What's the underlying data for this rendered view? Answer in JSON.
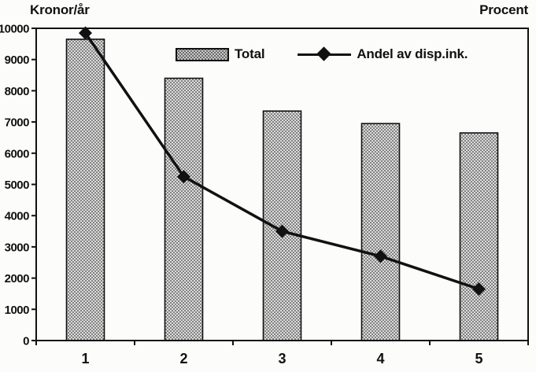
{
  "header": {
    "left_axis_label": "Kronor/år",
    "right_axis_label": "Procent"
  },
  "legend": {
    "bar_series_label": "Total",
    "line_series_label": "Andel av disp.ink."
  },
  "chart_data": {
    "type": "bar",
    "categories": [
      "1",
      "2",
      "3",
      "4",
      "5"
    ],
    "series": [
      {
        "name": "Total",
        "type": "bar",
        "values": [
          9650,
          8400,
          7350,
          6950,
          6650
        ]
      },
      {
        "name": "Andel av disp.ink.",
        "type": "line",
        "values": [
          9850,
          5250,
          3500,
          2700,
          1650
        ]
      }
    ],
    "title": "",
    "ylabel_left": "Kronor/år",
    "ylabel_right": "Procent",
    "ylim": [
      0,
      10000
    ],
    "ytick_step": 1000,
    "grid": false,
    "legend_position": "inside-top",
    "colors": {
      "bar_fill": "#dcdcdc",
      "bar_dot": "#666666",
      "line": "#111111",
      "axis": "#111111"
    }
  }
}
